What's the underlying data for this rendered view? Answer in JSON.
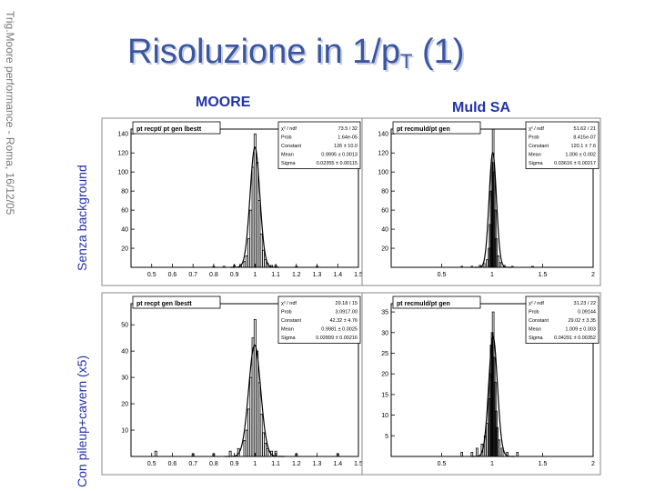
{
  "slide": {
    "title_main": "Risoluzione in 1/p",
    "title_sub": "T",
    "title_tail": "(1)",
    "side_text": "Trig.Moore performance - Roma, 16/12/05",
    "col_labels": [
      "MOORE",
      "Muld SA"
    ],
    "row_labels": [
      "Senza background",
      "Con pileup+cavern (x5)"
    ]
  },
  "chart_data": [
    {
      "type": "histogram",
      "title": "pt recpt/ pt gen lbestt",
      "xlim": [
        0.4,
        1.5
      ],
      "xticks": [
        "0.5",
        "0.6",
        "0.7",
        "0.8",
        "0.9",
        "1",
        "1.1",
        "1.2",
        "1.3",
        "1.4",
        "1.5"
      ],
      "ylim": [
        0,
        145
      ],
      "yticks": [
        "20",
        "40",
        "60",
        "80",
        "100",
        "120",
        "140"
      ],
      "stats": [
        {
          "label": "χ² / ndf",
          "value": "73.5 / 32"
        },
        {
          "label": "Prob",
          "value": "1.64e-05"
        },
        {
          "label": "Constant",
          "value": "126 ± 10.0"
        },
        {
          "label": "Mean",
          "value": "0.9995 ± 0.0013"
        },
        {
          "label": "Sigma",
          "value": "0.02355 ± 0.00115"
        }
      ],
      "fit": {
        "constant": 126,
        "mean": 0.9995,
        "sigma": 0.02355
      },
      "bins": [
        [
          0.8,
          1
        ],
        [
          0.85,
          1
        ],
        [
          0.9,
          2
        ],
        [
          0.93,
          3
        ],
        [
          0.95,
          6
        ],
        [
          0.96,
          12
        ],
        [
          0.97,
          30
        ],
        [
          0.98,
          60
        ],
        [
          0.99,
          105
        ],
        [
          1.0,
          140
        ],
        [
          1.01,
          110
        ],
        [
          1.02,
          70
        ],
        [
          1.03,
          35
        ],
        [
          1.04,
          18
        ],
        [
          1.05,
          8
        ],
        [
          1.06,
          4
        ],
        [
          1.08,
          2
        ],
        [
          1.1,
          2
        ],
        [
          1.2,
          1
        ],
        [
          1.3,
          1
        ]
      ]
    },
    {
      "type": "histogram",
      "title": "pt recmuld/pt gen",
      "xlim": [
        0,
        2
      ],
      "xticks": [
        "0.5",
        "1",
        "1.5",
        "2"
      ],
      "ylim": [
        0,
        145
      ],
      "yticks": [
        "20",
        "40",
        "60",
        "80",
        "100",
        "120",
        "140"
      ],
      "stats": [
        {
          "label": "χ² / ndf",
          "value": "51.62 / 21"
        },
        {
          "label": "Prob",
          "value": "8.415e-07"
        },
        {
          "label": "Constant",
          "value": "120.1 ± 7.6"
        },
        {
          "label": "Mean",
          "value": "1.006 ± 0.002"
        },
        {
          "label": "Sigma",
          "value": "0.03616 ± 0.00217"
        }
      ],
      "fit": {
        "constant": 120.1,
        "mean": 1.006,
        "sigma": 0.03616
      },
      "bins": [
        [
          0.7,
          1
        ],
        [
          0.8,
          1
        ],
        [
          0.88,
          2
        ],
        [
          0.92,
          4
        ],
        [
          0.95,
          8
        ],
        [
          0.97,
          20
        ],
        [
          0.98,
          45
        ],
        [
          0.99,
          80
        ],
        [
          1.0,
          110
        ],
        [
          1.01,
          145
        ],
        [
          1.02,
          100
        ],
        [
          1.03,
          60
        ],
        [
          1.04,
          30
        ],
        [
          1.06,
          12
        ],
        [
          1.08,
          5
        ],
        [
          1.12,
          2
        ],
        [
          1.2,
          1
        ],
        [
          1.4,
          1
        ]
      ]
    },
    {
      "type": "histogram",
      "title": "pt recpt gen lbestt",
      "xlim": [
        0.4,
        1.5
      ],
      "xticks": [
        "0.5",
        "0.6",
        "0.7",
        "0.8",
        "0.9",
        "1",
        "1.1",
        "1.2",
        "1.3",
        "1.4",
        "1.5"
      ],
      "ylim": [
        0,
        58
      ],
      "yticks": [
        "10",
        "20",
        "30",
        "40",
        "50"
      ],
      "stats": [
        {
          "label": "χ² / ndf",
          "value": "29.18 / 15"
        },
        {
          "label": "Prob",
          "value": "3.0917.00"
        },
        {
          "label": "Constant",
          "value": "42.32 ± 4.76"
        },
        {
          "label": "Mean",
          "value": "0.9981 ± 0.0025"
        },
        {
          "label": "Sigma",
          "value": "0.02899 ± 0.00216"
        }
      ],
      "fit": {
        "constant": 42.32,
        "mean": 0.9981,
        "sigma": 0.02899
      },
      "bins": [
        [
          0.52,
          2
        ],
        [
          0.7,
          1
        ],
        [
          0.8,
          1
        ],
        [
          0.88,
          2
        ],
        [
          0.92,
          3
        ],
        [
          0.95,
          6
        ],
        [
          0.96,
          10
        ],
        [
          0.97,
          18
        ],
        [
          0.98,
          30
        ],
        [
          0.99,
          45
        ],
        [
          1.0,
          52
        ],
        [
          1.01,
          40
        ],
        [
          1.02,
          28
        ],
        [
          1.03,
          16
        ],
        [
          1.04,
          9
        ],
        [
          1.05,
          5
        ],
        [
          1.06,
          3
        ],
        [
          1.08,
          2
        ],
        [
          1.1,
          2
        ],
        [
          1.2,
          1
        ],
        [
          1.4,
          1
        ]
      ]
    },
    {
      "type": "histogram",
      "title": "pt recmuld/pt gen",
      "xlim": [
        0,
        2
      ],
      "xticks": [
        "0.5",
        "1",
        "1.5",
        "2"
      ],
      "ylim": [
        0,
        37
      ],
      "yticks": [
        "5",
        "10",
        "15",
        "20",
        "25",
        "30",
        "35"
      ],
      "stats": [
        {
          "label": "χ² / ndf",
          "value": "31.23 / 22"
        },
        {
          "label": "Prob",
          "value": "0.09144"
        },
        {
          "label": "Constant",
          "value": "29.02 ± 3.35"
        },
        {
          "label": "Mean",
          "value": "1.009 ± 0.003"
        },
        {
          "label": "Sigma",
          "value": "0.04291 ± 0.00352"
        }
      ],
      "fit": {
        "constant": 29.02,
        "mean": 1.009,
        "sigma": 0.04291
      },
      "bins": [
        [
          0.7,
          1
        ],
        [
          0.8,
          1
        ],
        [
          0.85,
          2
        ],
        [
          0.9,
          3
        ],
        [
          0.93,
          5
        ],
        [
          0.95,
          8
        ],
        [
          0.97,
          14
        ],
        [
          0.98,
          20
        ],
        [
          0.99,
          27
        ],
        [
          1.0,
          30
        ],
        [
          1.01,
          35
        ],
        [
          1.02,
          24
        ],
        [
          1.03,
          18
        ],
        [
          1.04,
          11
        ],
        [
          1.05,
          7
        ],
        [
          1.07,
          4
        ],
        [
          1.1,
          2
        ],
        [
          1.15,
          1
        ],
        [
          1.25,
          1
        ]
      ]
    }
  ]
}
